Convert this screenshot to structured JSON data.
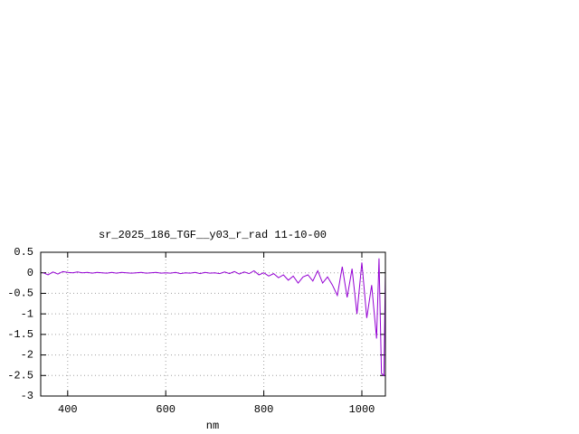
{
  "chart_data": {
    "type": "line",
    "title": "sr_2025_186_TGF__y03_r_rad 11-10-00",
    "x_label": "nm",
    "xlim": [
      345,
      1048
    ],
    "xticks": [
      400,
      600,
      800,
      1000
    ],
    "ylim": [
      -3,
      0.5
    ],
    "yticks": [
      0.5,
      0,
      -0.5,
      -1,
      -1.5,
      -2,
      -2.5,
      -3
    ],
    "grid": true,
    "x": [
      350,
      360,
      370,
      380,
      390,
      400,
      410,
      420,
      430,
      440,
      450,
      460,
      470,
      480,
      490,
      500,
      510,
      520,
      530,
      540,
      550,
      560,
      570,
      580,
      590,
      600,
      610,
      620,
      630,
      640,
      650,
      660,
      670,
      680,
      690,
      700,
      710,
      720,
      730,
      740,
      750,
      760,
      770,
      780,
      790,
      800,
      810,
      820,
      830,
      840,
      850,
      860,
      870,
      880,
      890,
      900,
      910,
      920,
      930,
      940,
      950,
      960,
      970,
      980,
      990,
      1000,
      1010,
      1020,
      1030,
      1035,
      1040,
      1045,
      1048
    ],
    "series": [
      {
        "color": "#9400d3",
        "values": [
          0.0,
          -0.05,
          0.02,
          -0.03,
          0.03,
          0.01,
          0.0,
          0.02,
          0.0,
          0.01,
          -0.01,
          0.01,
          0.0,
          -0.01,
          0.01,
          -0.01,
          0.01,
          0.0,
          -0.01,
          0.0,
          0.01,
          -0.01,
          0.0,
          0.01,
          -0.01,
          0.0,
          -0.01,
          0.01,
          -0.02,
          0.0,
          -0.01,
          0.01,
          -0.02,
          0.01,
          -0.01,
          0.0,
          -0.02,
          0.02,
          -0.02,
          0.03,
          -0.03,
          0.02,
          -0.02,
          0.05,
          -0.05,
          0.0,
          -0.08,
          -0.02,
          -0.12,
          -0.05,
          -0.18,
          -0.08,
          -0.25,
          -0.1,
          -0.05,
          -0.2,
          0.05,
          -0.25,
          -0.1,
          -0.3,
          -0.55,
          0.15,
          -0.6,
          0.1,
          -1.0,
          0.25,
          -1.1,
          -0.3,
          -1.6,
          0.35,
          -2.45,
          -2.5,
          0.0
        ]
      }
    ]
  }
}
